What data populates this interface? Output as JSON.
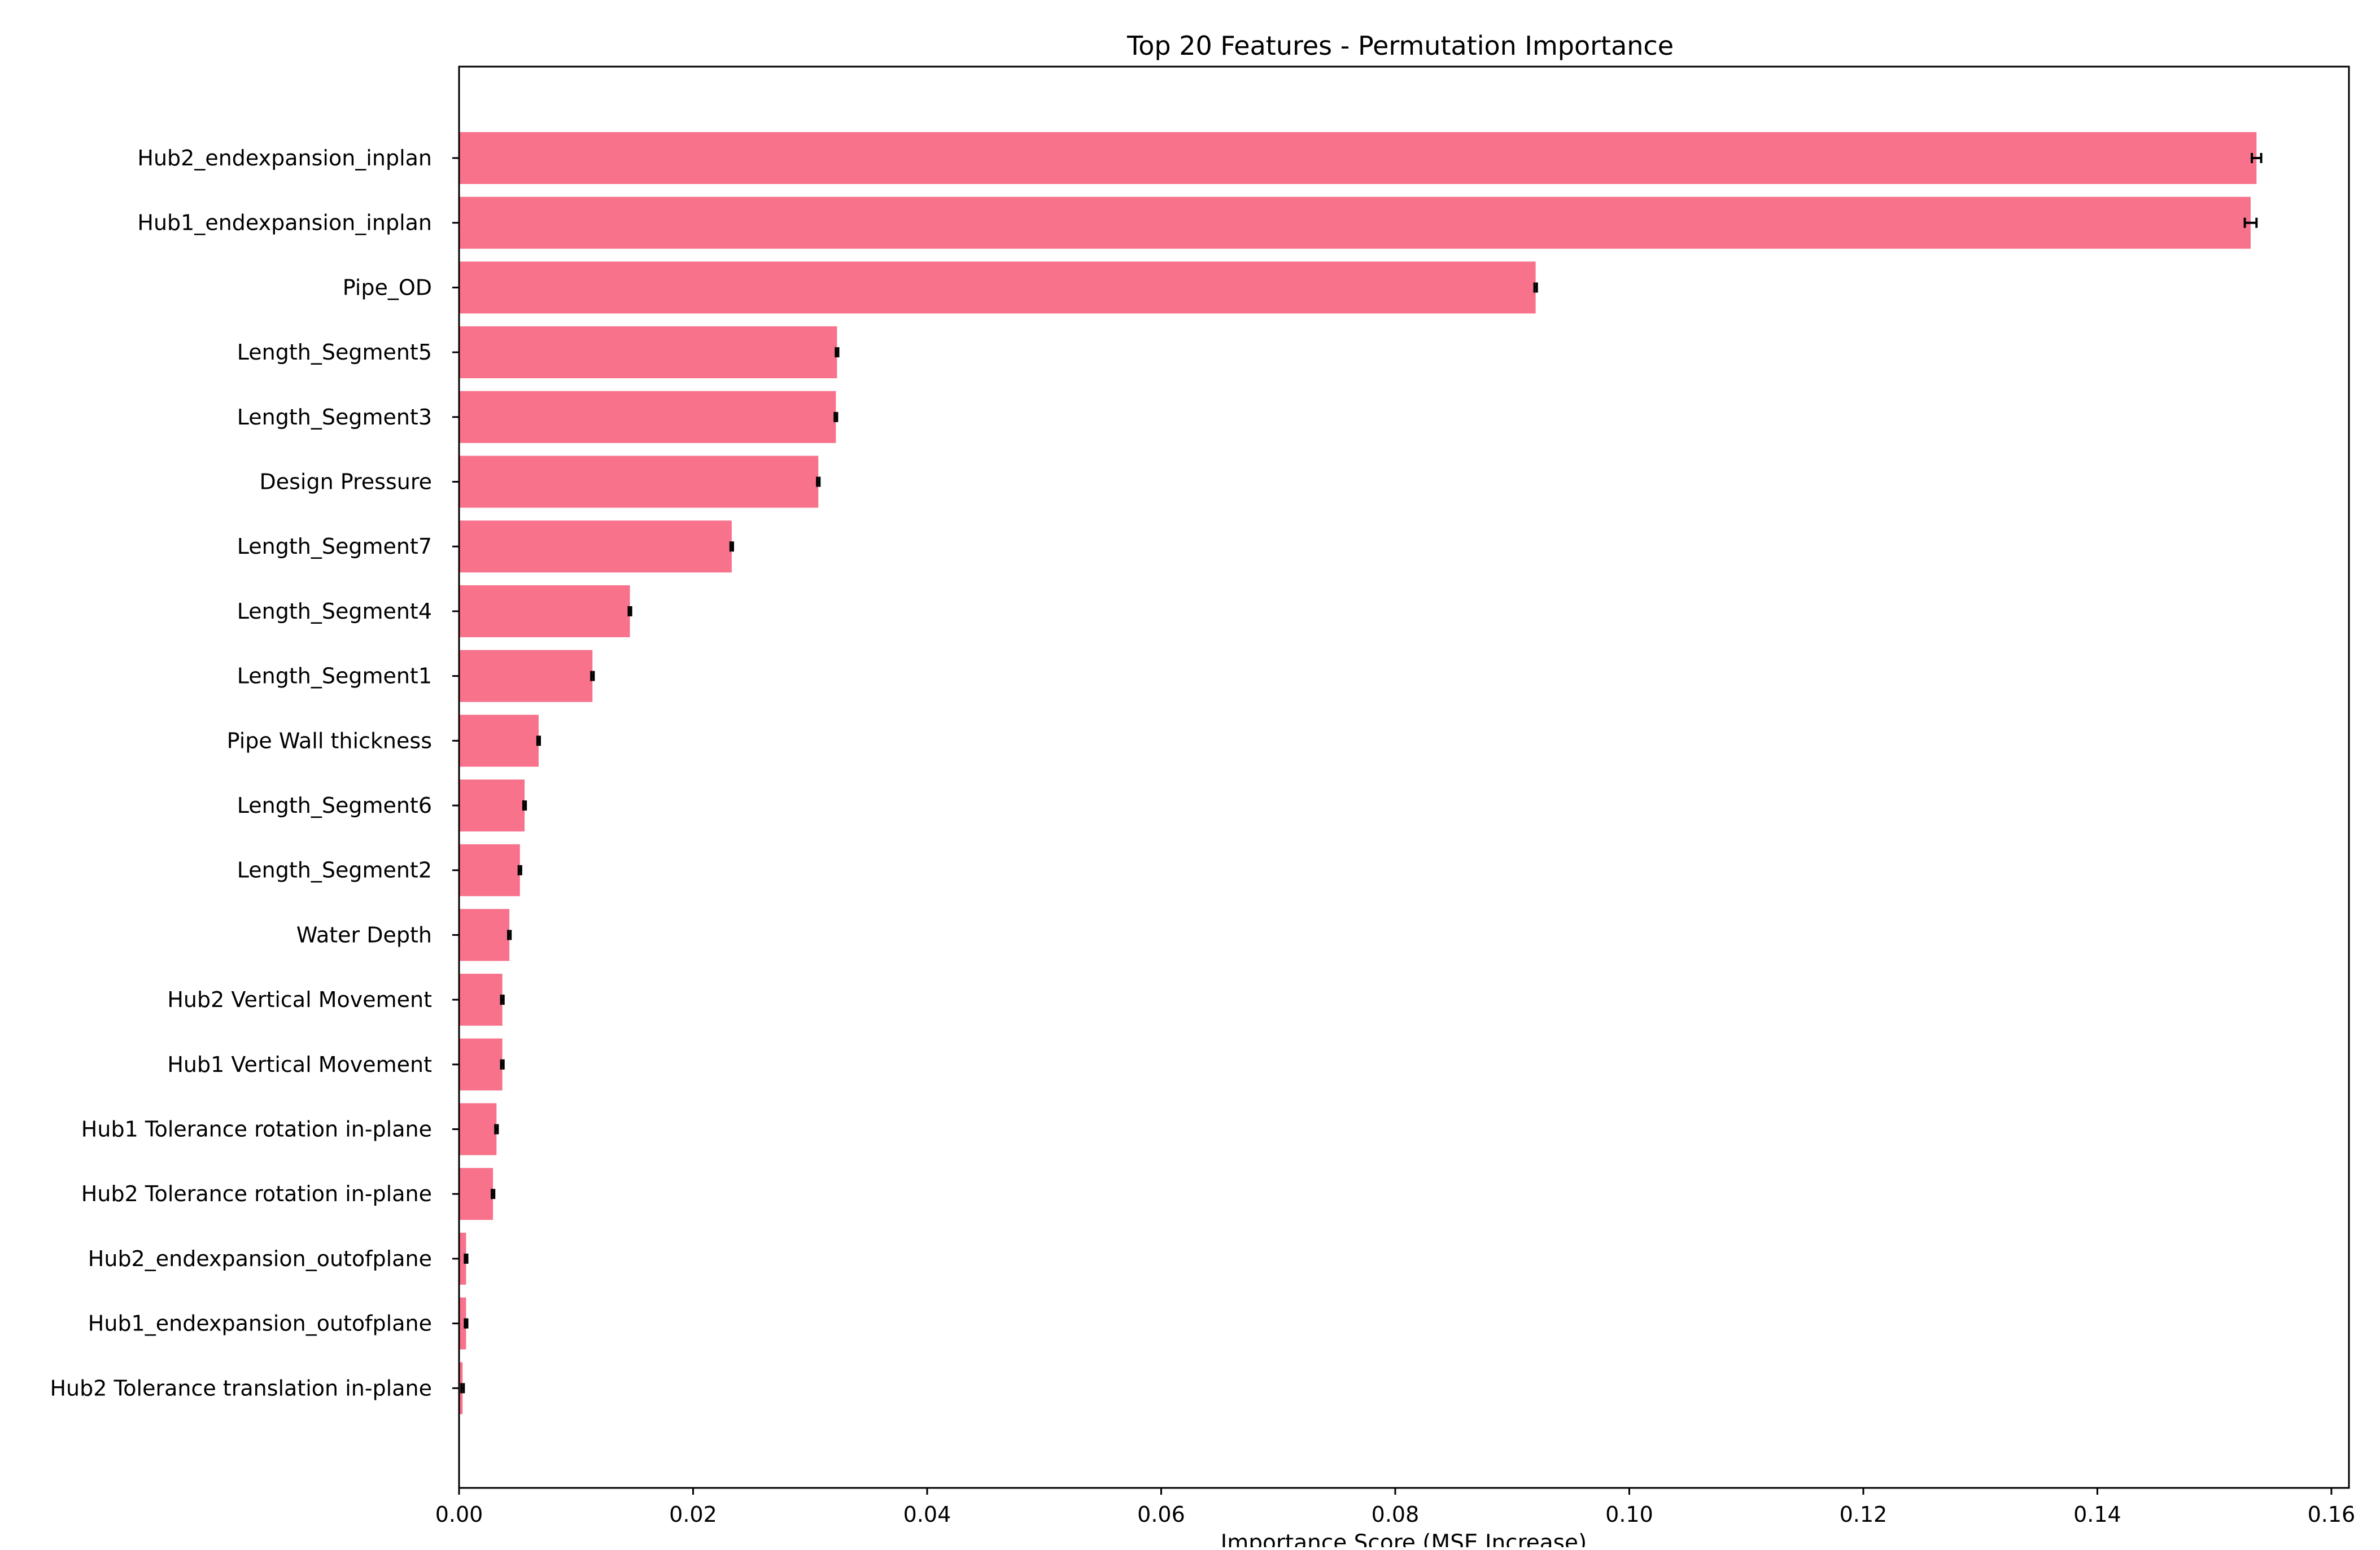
{
  "chart_data": {
    "type": "bar",
    "orientation": "horizontal",
    "title": "Top 20 Features - Permutation Importance",
    "xlabel": "Importance Score (MSE Increase)",
    "ylabel": "",
    "xlim": [
      0,
      0.1615
    ],
    "xticks": [
      0.0,
      0.02,
      0.04,
      0.06,
      0.08,
      0.1,
      0.12,
      0.14,
      0.16
    ],
    "xtick_labels": [
      "0.00",
      "0.02",
      "0.04",
      "0.06",
      "0.08",
      "0.10",
      "0.12",
      "0.14",
      "0.16"
    ],
    "bar_color": "#f7728a",
    "error_color": "#000000",
    "grid": false,
    "categories": [
      "Hub2_endexpansion_inplan",
      "Hub1_endexpansion_inplan",
      "Pipe_OD",
      "Length_Segment5",
      "Length_Segment3",
      "Design Pressure",
      "Length_Segment7",
      "Length_Segment4",
      "Length_Segment1",
      "Pipe Wall thickness",
      "Length_Segment6",
      "Length_Segment2",
      "Water Depth",
      "Hub2 Vertical Movement",
      "Hub1 Vertical Movement",
      "Hub1 Tolerance rotation in-plane",
      "Hub2 Tolerance rotation in-plane",
      "Hub2_endexpansion_outofplane",
      "Hub1_endexpansion_outofplane",
      "Hub2 Tolerance translation in-plane"
    ],
    "values": [
      0.1536,
      0.1531,
      0.092,
      0.0323,
      0.0322,
      0.0307,
      0.0233,
      0.0146,
      0.0114,
      0.0068,
      0.0056,
      0.0052,
      0.0043,
      0.0037,
      0.0037,
      0.0032,
      0.0029,
      0.0006,
      0.0006,
      0.0003
    ],
    "errors": [
      0.0004,
      0.0005,
      0.0001,
      0.0001,
      0.0001,
      0.0001,
      0.0001,
      0.0001,
      0.0001,
      0.0001,
      0.0001,
      0.0001,
      0.0001,
      0.0001,
      0.0001,
      0.0001,
      0.0001,
      0.0001,
      0.0001,
      0.0001
    ]
  }
}
